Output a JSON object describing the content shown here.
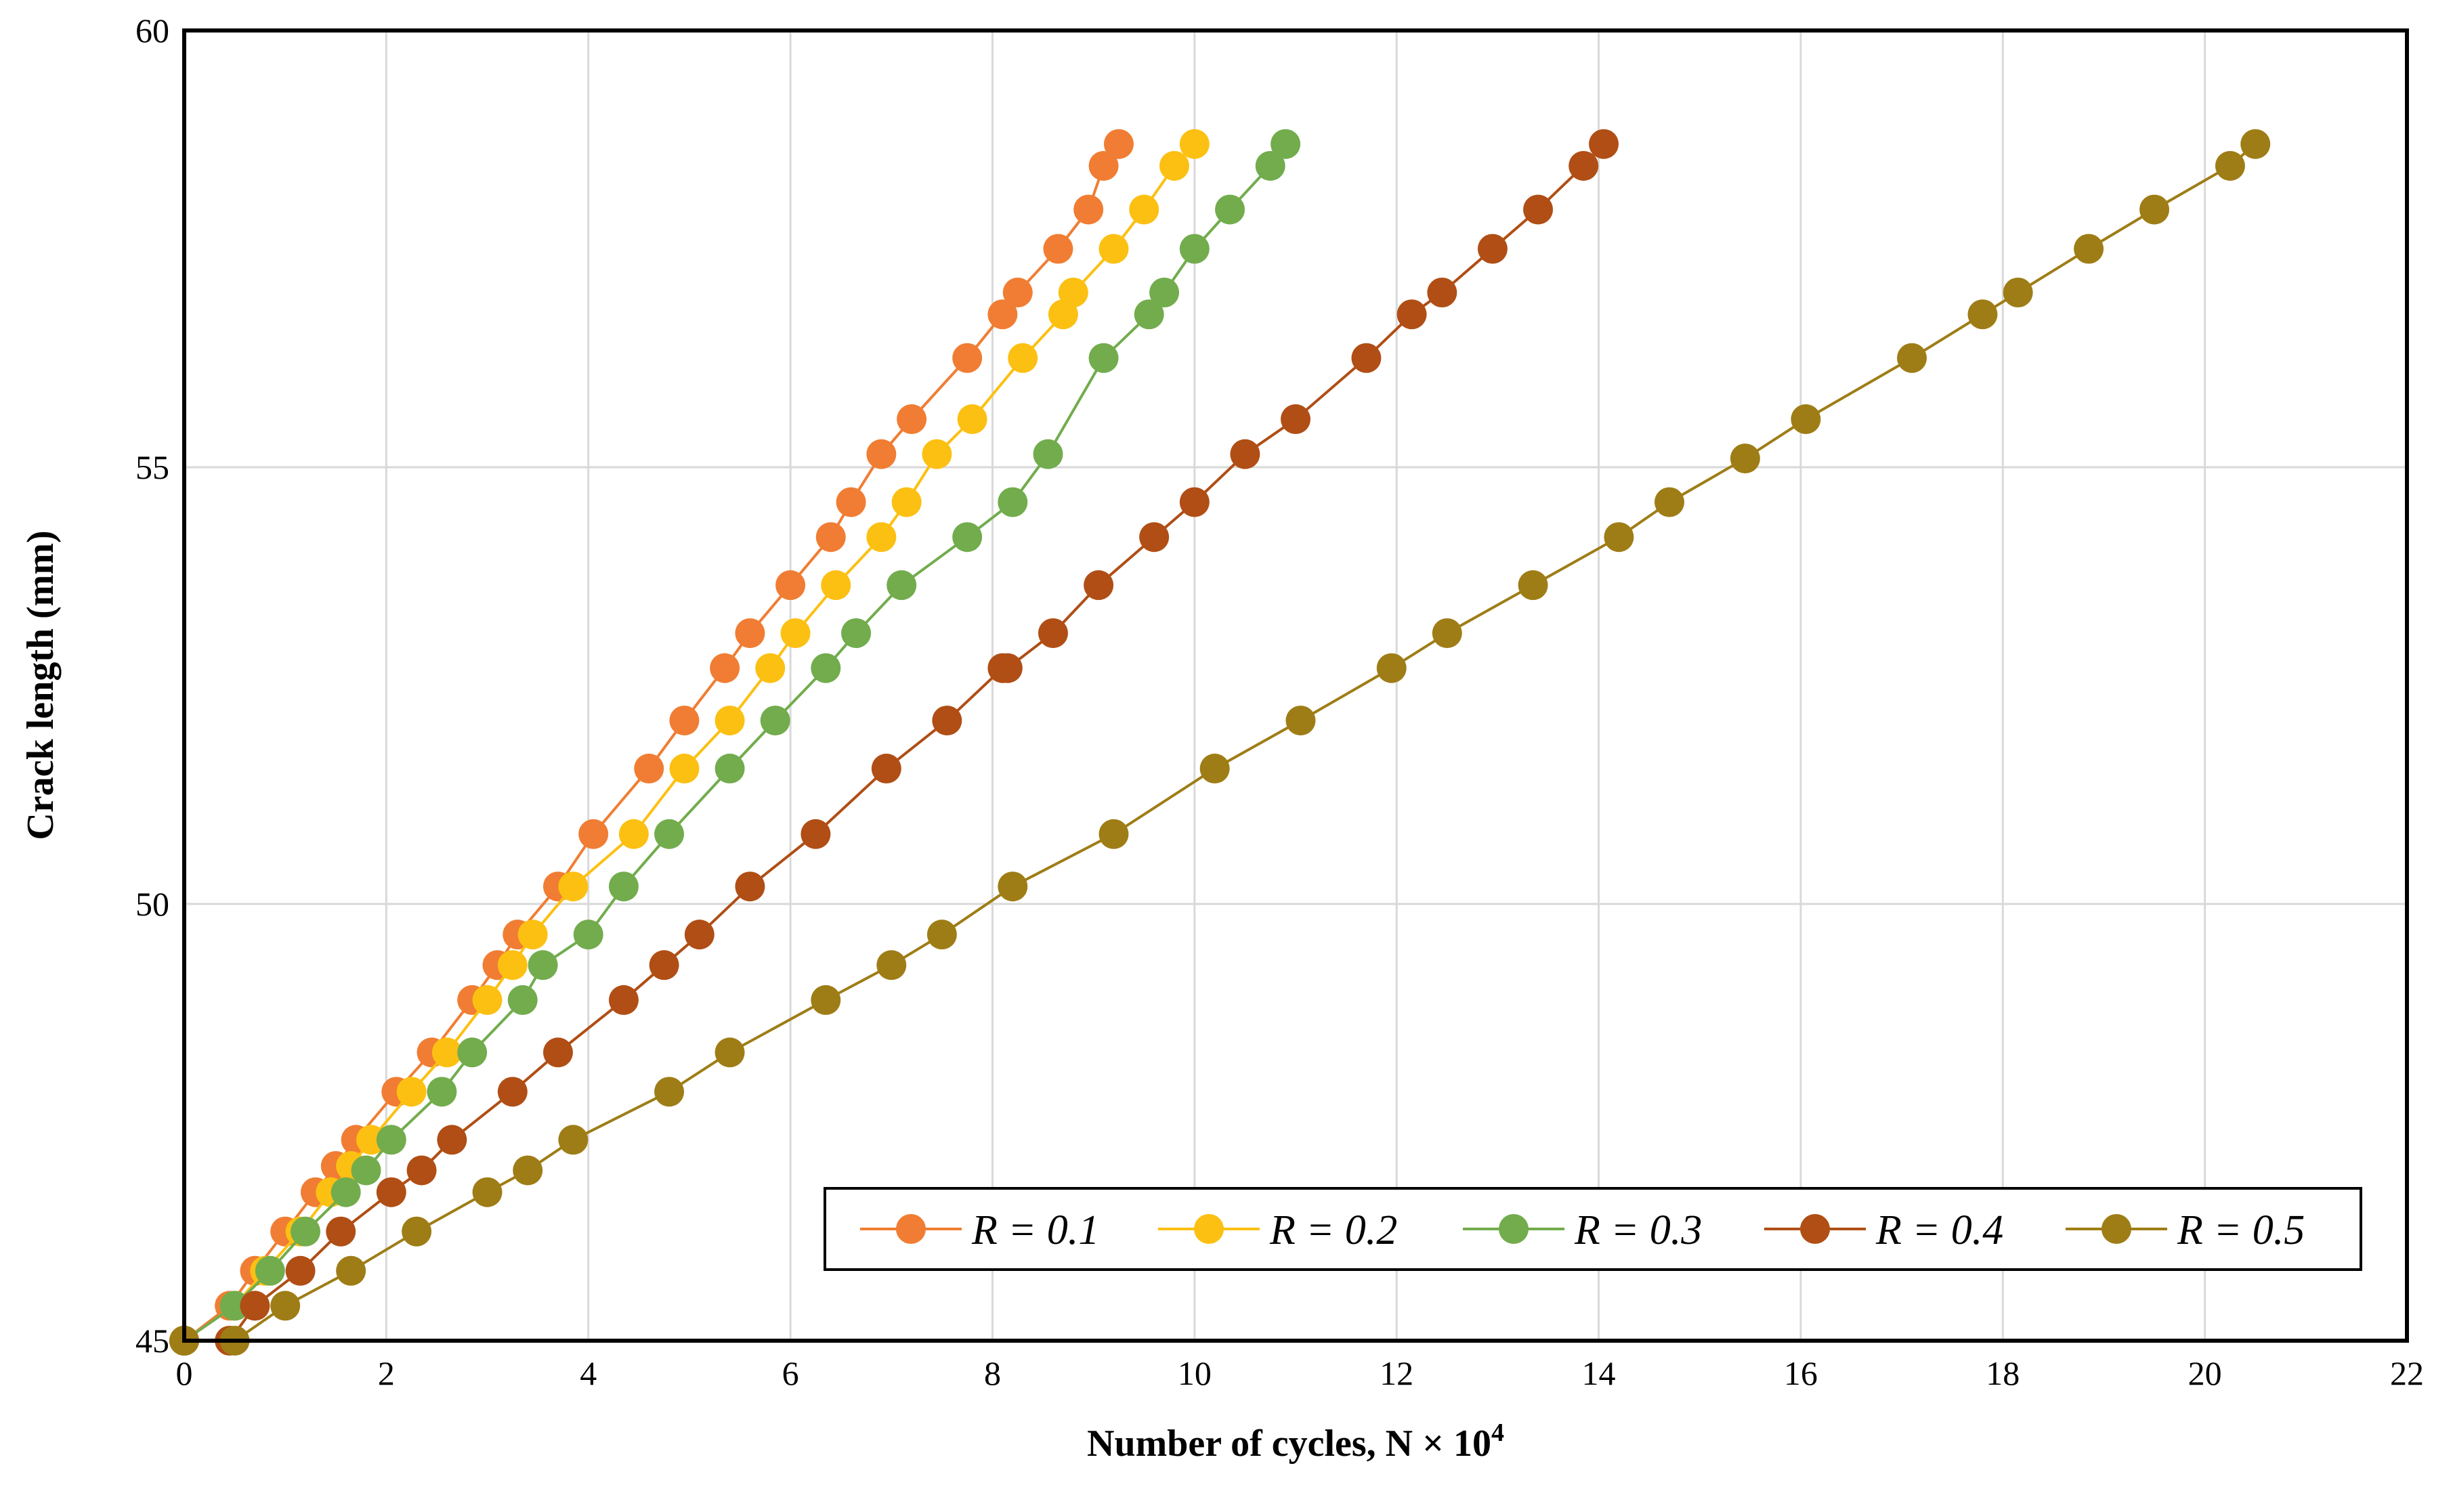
{
  "chart_data": {
    "type": "line",
    "title": "",
    "xlabel": "Number of cycles, N ×  10",
    "xlabel_sup": "4",
    "ylabel": "Crack length (mm)",
    "xlim": [
      0,
      22
    ],
    "ylim": [
      45,
      60
    ],
    "xticks": [
      "0",
      "2",
      "4",
      "6",
      "8",
      "10",
      "12",
      "14",
      "16",
      "18",
      "20",
      "22"
    ],
    "yticks": [
      "45",
      "50",
      "55",
      "60"
    ],
    "grid": true,
    "legend_position": "bottom-right",
    "series": [
      {
        "name": "R = 0.1",
        "color": "#F07D33",
        "x": [
          0,
          0.45,
          0.7,
          1.0,
          1.3,
          1.5,
          1.7,
          2.1,
          2.45,
          2.85,
          3.1,
          3.3,
          3.7,
          4.05,
          4.6,
          4.95,
          5.35,
          5.6,
          6.0,
          6.4,
          6.6,
          6.9,
          7.2,
          7.75,
          8.1,
          8.25,
          8.65,
          8.95,
          9.1,
          9.25
        ],
        "y": [
          45,
          45.4,
          45.8,
          46.25,
          46.7,
          47.0,
          47.3,
          47.85,
          48.3,
          48.9,
          49.3,
          49.65,
          50.2,
          50.8,
          51.55,
          52.1,
          52.7,
          53.1,
          53.65,
          54.2,
          54.6,
          55.15,
          55.55,
          56.25,
          56.75,
          57.0,
          57.5,
          57.95,
          58.45,
          58.7
        ]
      },
      {
        "name": "R = 0.2",
        "color": "#FCC012",
        "x": [
          0,
          0.5,
          0.8,
          1.15,
          1.45,
          1.65,
          1.85,
          2.25,
          2.6,
          3.0,
          3.25,
          3.45,
          3.85,
          4.45,
          4.95,
          5.4,
          5.8,
          6.05,
          6.45,
          6.9,
          7.15,
          7.45,
          7.8,
          8.3,
          8.7,
          8.8,
          9.2,
          9.5,
          9.8,
          10.0
        ],
        "y": [
          45,
          45.4,
          45.8,
          46.25,
          46.7,
          47.0,
          47.3,
          47.85,
          48.3,
          48.9,
          49.3,
          49.65,
          50.2,
          50.8,
          51.55,
          52.1,
          52.7,
          53.1,
          53.65,
          54.2,
          54.6,
          55.15,
          55.55,
          56.25,
          56.75,
          57.0,
          57.5,
          57.95,
          58.45,
          58.7
        ]
      },
      {
        "name": "R = 0.3",
        "color": "#72AC4D",
        "x": [
          0,
          0.5,
          0.85,
          1.2,
          1.6,
          1.8,
          2.05,
          2.55,
          2.85,
          3.35,
          3.55,
          4.0,
          4.35,
          4.8,
          5.4,
          5.85,
          6.35,
          6.65,
          7.1,
          7.75,
          8.2,
          8.55,
          9.1,
          9.55,
          9.7,
          10.0,
          10.35,
          10.75,
          10.9
        ],
        "y": [
          45,
          45.4,
          45.8,
          46.25,
          46.7,
          46.95,
          47.3,
          47.85,
          48.3,
          48.9,
          49.3,
          49.65,
          50.2,
          50.8,
          51.55,
          52.1,
          52.7,
          53.1,
          53.65,
          54.2,
          54.6,
          55.15,
          56.25,
          56.75,
          57.0,
          57.5,
          57.95,
          58.45,
          58.7
        ]
      },
      {
        "name": "R = 0.4",
        "color": "#B04E15",
        "x": [
          0,
          0.45,
          0.7,
          1.15,
          1.55,
          2.05,
          2.35,
          2.65,
          3.25,
          3.7,
          4.35,
          4.75,
          5.1,
          5.6,
          6.25,
          6.95,
          7.55,
          8.1,
          8.15,
          8.6,
          9.05,
          9.6,
          10.0,
          10.5,
          11.0,
          11.7,
          12.15,
          12.45,
          12.95,
          13.4,
          13.85,
          14.05
        ],
        "y": [
          45,
          45.0,
          45.4,
          45.8,
          46.25,
          46.7,
          46.95,
          47.3,
          47.85,
          48.3,
          48.9,
          49.3,
          49.65,
          50.2,
          50.8,
          51.55,
          52.1,
          52.7,
          52.7,
          53.1,
          53.65,
          54.2,
          54.6,
          55.15,
          55.55,
          56.25,
          56.75,
          57.0,
          57.5,
          57.95,
          58.45,
          58.7
        ]
      },
      {
        "name": "R = 0.5",
        "color": "#9E7D16",
        "x": [
          0,
          0.5,
          1.0,
          1.65,
          2.3,
          3.0,
          3.4,
          3.85,
          4.8,
          5.4,
          6.35,
          7.0,
          7.5,
          8.2,
          9.2,
          10.2,
          11.05,
          11.95,
          12.5,
          13.35,
          14.2,
          14.7,
          15.45,
          16.05,
          17.1,
          17.8,
          18.15,
          18.85,
          19.5,
          20.25,
          20.5
        ],
        "y": [
          45,
          45.0,
          45.4,
          45.8,
          46.25,
          46.7,
          46.95,
          47.3,
          47.85,
          48.3,
          48.9,
          49.3,
          49.65,
          50.2,
          50.8,
          51.55,
          52.1,
          52.7,
          53.1,
          53.65,
          54.2,
          54.6,
          55.1,
          55.55,
          56.25,
          56.75,
          57.0,
          57.5,
          57.95,
          58.45,
          58.7
        ]
      }
    ]
  }
}
